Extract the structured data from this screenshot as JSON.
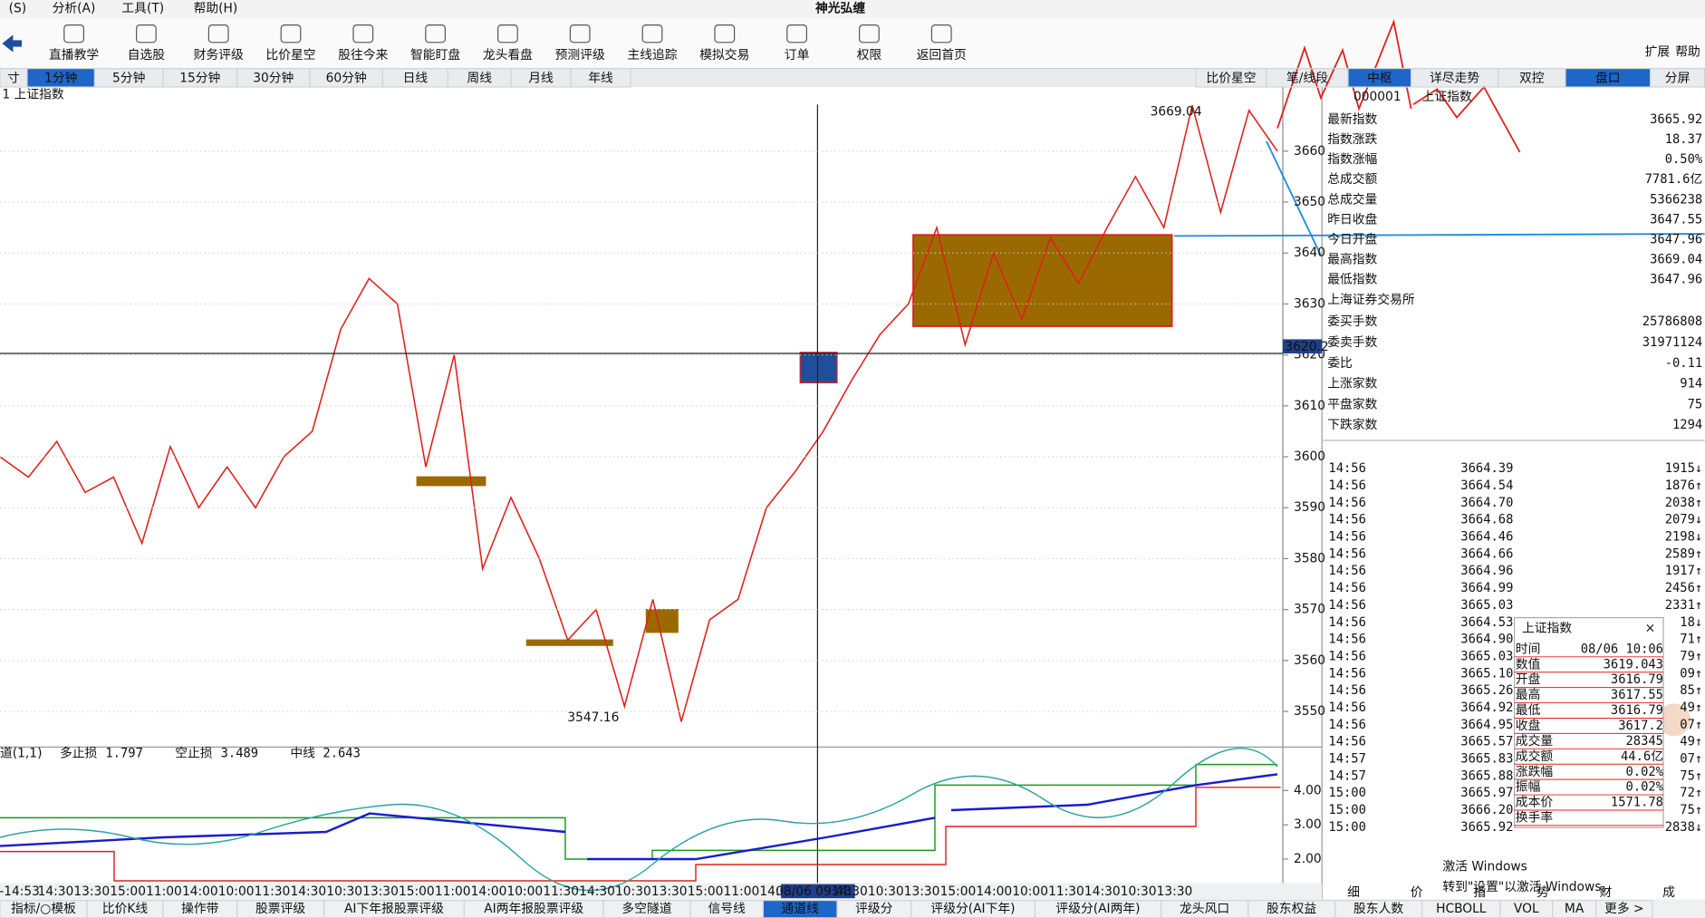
{
  "menu": [
    "(S)",
    "分析(A)",
    "工具(T)",
    "帮助(H)"
  ],
  "app_title": "神光弘缠",
  "toolbar": [
    "直播教学",
    "自选股",
    "财务评级",
    "比价星空",
    "股往今来",
    "智能盯盘",
    "龙头看盘",
    "预测评级",
    "主线追踪",
    "模拟交易",
    "订单",
    "权限",
    "返回首页"
  ],
  "toolbar_right": [
    "扩展",
    "帮助"
  ],
  "period_tabs": [
    "寸",
    "1分钟",
    "5分钟",
    "15分钟",
    "30分钟",
    "60分钟",
    "日线",
    "周线",
    "月线",
    "年线"
  ],
  "period_selected": 1,
  "view_tabs": [
    "比价星空",
    "笔/线段",
    "中枢",
    "详尽走势",
    "双控",
    "盘口",
    "分屏"
  ],
  "view_selected": [
    2,
    5
  ],
  "chart": {
    "title": "1 上证指数",
    "ylim": [
      3543,
      3672.6
    ],
    "yticks": [
      3660,
      3650,
      3640,
      3630,
      3620,
      3610,
      3600,
      3590,
      3580,
      3570,
      3560,
      3550
    ],
    "high_label": "3669.04",
    "low_label": "3547.16",
    "cursor_label": "3620.2",
    "line_color": "#e0201c",
    "prices": [
      3600,
      3596,
      3603,
      3593,
      3596,
      3583,
      3602,
      3590,
      3598,
      3590,
      3600,
      3605,
      3625,
      3635,
      3630,
      3598,
      3620,
      3578,
      3592,
      3580,
      3564,
      3570,
      3551,
      3572,
      3548,
      3568,
      3572,
      3590,
      3597,
      3605,
      3615,
      3624,
      3630,
      3645,
      3622,
      3640,
      3627,
      3643,
      3634,
      3645,
      3655,
      3645,
      3669,
      3648,
      3668,
      3660
    ]
  },
  "indicator": {
    "name": "道(1,1)",
    "items": [
      {
        "name": "多止损",
        "value": "1.797",
        "color": "#e0201c"
      },
      {
        "name": "空止损",
        "value": "3.489",
        "color": "#1a9a1a"
      },
      {
        "name": "中线",
        "value": "2.643",
        "color": "#1a1ad0"
      }
    ],
    "ylim": [
      1.3,
      5.27
    ],
    "yticks": [
      {
        "value": 4,
        "label": "4.00"
      },
      {
        "value": 3,
        "label": "3.00"
      },
      {
        "value": 2,
        "label": "2.00"
      }
    ]
  },
  "time_axis": [
    "-14:53",
    "14:30",
    "13:30",
    "15:00",
    "11:00",
    "14:00",
    "10:00",
    "11:30",
    "14:30",
    "10:30",
    "13:30",
    "15:00",
    "11:00",
    "14:00",
    "10:00",
    "11:30",
    "14:30",
    "10:30",
    "13:30",
    "15:00",
    "11:00",
    "14:00",
    "08/06 09:43",
    "14:30",
    "10:30",
    "13:30",
    "15:00",
    "14:00",
    "10:00",
    "11:30",
    "14:30",
    "10:30",
    "13:30"
  ],
  "quote": {
    "code": "000001",
    "name": "上证指数",
    "rows": [
      {
        "label": "最新指数",
        "value": "3665.92",
        "color": "#e0201c"
      },
      {
        "label": "指数涨跌",
        "value": "18.37",
        "color": "#e0201c"
      },
      {
        "label": "指数涨幅",
        "value": "0.50%",
        "color": "#e0201c"
      },
      {
        "label": "总成交额",
        "value": "7781.6亿",
        "color": "#bbbbbb"
      },
      {
        "label": "总成交量",
        "value": "5366238",
        "color": "#bbbbbb"
      },
      {
        "label": "昨日收盘",
        "value": "3647.55",
        "color": "#111111"
      },
      {
        "label": "今日开盘",
        "value": "3647.96",
        "color": "#e0201c"
      },
      {
        "label": "最高指数",
        "value": "3669.04",
        "color": "#e0201c"
      },
      {
        "label": "最低指数",
        "value": "3647.96",
        "color": "#e0201c"
      }
    ],
    "exchange": "上海证券交易所",
    "rows2": [
      {
        "label": "委买手数",
        "value": "25786808",
        "color": "#111111"
      },
      {
        "label": "委卖手数",
        "value": "31971124",
        "color": "#111111"
      },
      {
        "label": "委比",
        "value": "-0.11",
        "color": "#1a9a1a"
      },
      {
        "label": "上涨家数",
        "value": "914",
        "color": "#e0201c"
      },
      {
        "label": "平盘家数",
        "value": "75",
        "color": "#bbbbbb"
      },
      {
        "label": "下跌家数",
        "value": "1294",
        "color": "#1a9a1a"
      }
    ]
  },
  "ticks": [
    [
      "14:56",
      "3664.39",
      "1915↓"
    ],
    [
      "14:56",
      "3664.54",
      "1876↑"
    ],
    [
      "14:56",
      "3664.70",
      "2038↑"
    ],
    [
      "14:56",
      "3664.68",
      "2079↓"
    ],
    [
      "14:56",
      "3664.46",
      "2198↓"
    ],
    [
      "14:56",
      "3664.66",
      "2589↑"
    ],
    [
      "14:56",
      "3664.96",
      "1917↑"
    ],
    [
      "14:56",
      "3664.99",
      "2456↑"
    ],
    [
      "14:56",
      "3665.03",
      "2331↑"
    ],
    [
      "14:56",
      "3664.53",
      "18↓"
    ],
    [
      "14:56",
      "3664.90",
      "71↑"
    ],
    [
      "14:56",
      "3665.03",
      "79↑"
    ],
    [
      "14:56",
      "3665.10",
      "09↑"
    ],
    [
      "14:56",
      "3665.26",
      "85↑"
    ],
    [
      "14:56",
      "3664.92",
      "49↑"
    ],
    [
      "14:56",
      "3664.95",
      "07↑"
    ],
    [
      "14:56",
      "3665.57",
      "49↑"
    ],
    [
      "14:57",
      "3665.83",
      "07↑"
    ],
    [
      "14:57",
      "3665.88",
      "75↑"
    ],
    [
      "15:00",
      "3665.97",
      "72↑"
    ],
    [
      "15:00",
      "3666.20",
      "75↑"
    ],
    [
      "15:00",
      "3665.92",
      "2838↓"
    ]
  ],
  "popup": {
    "title": "上证指数",
    "rows": [
      [
        "时间",
        "08/06 10:06"
      ],
      [
        "数值",
        "3619.043"
      ],
      [
        "开盘",
        "3616.79"
      ],
      [
        "最高",
        "3617.55"
      ],
      [
        "最低",
        "3616.79"
      ],
      [
        "收盘",
        "3617.2"
      ],
      [
        "成交量",
        "28345"
      ],
      [
        "成交额",
        "44.6亿"
      ],
      [
        "涨跌幅",
        "0.02%"
      ],
      [
        "振幅",
        "0.02%"
      ],
      [
        "成本价",
        "1571.78"
      ],
      [
        "换手率",
        null
      ]
    ]
  },
  "side_tabs": [
    "细",
    "价",
    "指",
    "势",
    "财",
    "成"
  ],
  "bottom_tabs": [
    "指标/○模板",
    "比价K线",
    "操作带",
    "股票评级",
    "AI下年报股票评级",
    "AI两年报股票评级",
    "多空隧道",
    "信号线",
    "通道线",
    "评级分",
    "评级分(AI下年)",
    "评级分(AI两年)",
    "龙头风口",
    "股东权益",
    "股东人数",
    "HCBOLL",
    "VOL",
    "MA",
    "更多 >"
  ],
  "bottom_selected": 8,
  "watermark": [
    "激活 Windows",
    "转到\"设置\"以激活 Windows。"
  ]
}
